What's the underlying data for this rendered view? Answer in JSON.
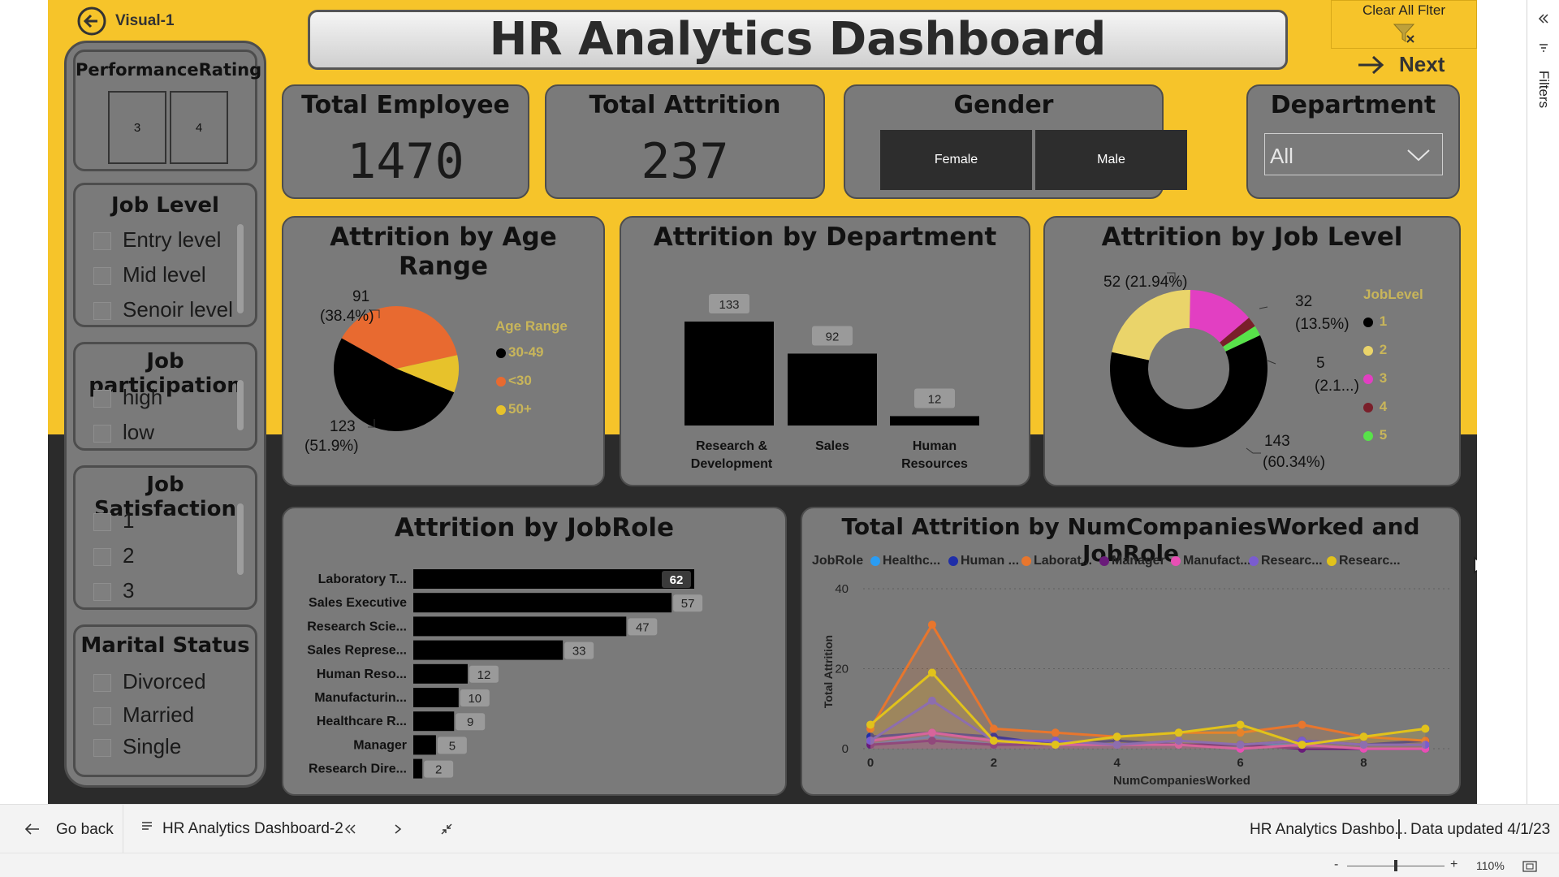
{
  "nav": {
    "back_label": "Visual-1",
    "next_label": "Next",
    "clear_filter_label": "Clear All Flter"
  },
  "header": {
    "title": "HR Analytics Dashboard"
  },
  "slicers": {
    "performance": {
      "title": "PerformanceRating",
      "options": [
        "3",
        "4"
      ]
    },
    "job_level": {
      "title": "Job Level",
      "options": [
        "Entry level",
        "Mid level",
        "Senoir level"
      ]
    },
    "job_participation": {
      "title": "Job participation",
      "options": [
        "high",
        "low"
      ]
    },
    "job_satisfaction": {
      "title": "Job Satisfaction",
      "options": [
        "1",
        "2",
        "3"
      ]
    },
    "marital_status": {
      "title": "Marital Status",
      "options": [
        "Divorced",
        "Married",
        "Single"
      ]
    }
  },
  "kpis": {
    "total_employee": {
      "title": "Total Employee",
      "value": "1470"
    },
    "total_attrition": {
      "title": "Total Attrition",
      "value": "237"
    }
  },
  "gender": {
    "title": "Gender",
    "options": [
      "Female",
      "Male"
    ]
  },
  "department": {
    "title": "Department",
    "selected": "All"
  },
  "colors": {
    "page_yellow": "#f6c42a",
    "panel_gray": "#7a7a7a",
    "dark_bg": "#2b2b2b",
    "bars": "#000000"
  },
  "chart_data": [
    {
      "type": "pie",
      "title": "Attrition by Age Range",
      "legend_title": "Age Range",
      "legend_placement": "right",
      "slices": [
        {
          "label": "30-49",
          "value": 123,
          "display": "123",
          "pct": "(51.9%)",
          "color": "#000000"
        },
        {
          "label": "<30",
          "value": 91,
          "display": "91",
          "pct": "(38.4%)",
          "color": "#e86a30"
        },
        {
          "label": "50+",
          "value": 23,
          "color": "#e7c22b"
        }
      ]
    },
    {
      "type": "bar",
      "title": "Attrition by Department",
      "categories": [
        "Research & Development",
        "Sales",
        "Human Resources"
      ],
      "category_lines": [
        [
          "Research &",
          "Development"
        ],
        [
          "Sales"
        ],
        [
          "Human",
          "Resources"
        ]
      ],
      "values": [
        133,
        92,
        12
      ],
      "ylim": [
        0,
        133
      ]
    },
    {
      "type": "pie",
      "title": "Attrition by Job Level",
      "legend_title": "JobLevel",
      "legend_placement": "right",
      "donut": true,
      "slices": [
        {
          "label": "1",
          "value": 143,
          "display": "143",
          "pct": "(60.34%)",
          "color": "#000000"
        },
        {
          "label": "2",
          "value": 52,
          "display": "52 (21.94%)",
          "color": "#ead46a"
        },
        {
          "label": "3",
          "value": 32,
          "display": "32",
          "pct": "(13.5%)",
          "color": "#e23fc2"
        },
        {
          "label": "4",
          "value": 5,
          "display": "5",
          "pct": "(2.1...)",
          "color": "#7a1f2a"
        },
        {
          "label": "5",
          "value": 5,
          "color": "#58e24a"
        }
      ]
    },
    {
      "type": "bar",
      "orientation": "horizontal",
      "title": "Attrition by JobRole",
      "categories": [
        "Laboratory T...",
        "Sales Executive",
        "Research Scie...",
        "Sales Represe...",
        "Human Reso...",
        "Manufacturin...",
        "Healthcare R...",
        "Manager",
        "Research Dire..."
      ],
      "values": [
        62,
        57,
        47,
        33,
        12,
        10,
        9,
        5,
        2
      ],
      "xlim": [
        0,
        62
      ]
    },
    {
      "type": "line",
      "title": "Total Attrition by NumCompaniesWorked and JobRole",
      "xlabel": "NumCompaniesWorked",
      "ylabel": "Total Attrition",
      "legend_title": "JobRole",
      "legend_placement": "top",
      "xlim": [
        0,
        9
      ],
      "ylim": [
        0,
        40
      ],
      "xticks": [
        "0",
        "2",
        "4",
        "6",
        "8"
      ],
      "yticks": [
        "0",
        "20",
        "40"
      ],
      "x": [
        0,
        1,
        2,
        3,
        4,
        5,
        6,
        7,
        8,
        9
      ],
      "series": [
        {
          "name": "Healthc...",
          "color": "#2a9df4",
          "values": [
            1,
            3,
            1,
            1,
            1,
            1,
            1,
            1,
            0,
            0
          ]
        },
        {
          "name": "Human ...",
          "color": "#1f2ea8",
          "values": [
            3,
            4,
            3,
            1,
            2,
            1,
            1,
            2,
            1,
            2
          ]
        },
        {
          "name": "Laborat...",
          "color": "#e8762d",
          "values": [
            5,
            31,
            5,
            4,
            3,
            4,
            4,
            6,
            3,
            2
          ]
        },
        {
          "name": "Manager",
          "color": "#6a1b7a",
          "values": [
            1,
            2,
            1,
            1,
            1,
            1,
            1,
            0,
            0,
            0
          ]
        },
        {
          "name": "Manufact...",
          "color": "#e94fb4",
          "values": [
            2,
            4,
            2,
            1,
            1,
            1,
            0,
            1,
            0,
            0
          ]
        },
        {
          "name": "Researc...",
          "color": "#7a5ccf",
          "values": [
            2,
            12,
            2,
            2,
            1,
            2,
            1,
            2,
            1,
            1
          ]
        },
        {
          "name": "Researc...",
          "color": "#e1c21b",
          "values": [
            6,
            19,
            2,
            1,
            3,
            4,
            6,
            1,
            3,
            5
          ]
        }
      ]
    }
  ],
  "app_bar": {
    "go_back_label": "Go back",
    "page_tab_label": "HR Analytics Dashboard-2",
    "report_name": "HR Analytics Dashbo...",
    "data_updated": "Data updated 4/1/23",
    "zoom": "110%",
    "filters_label": "Filters"
  }
}
